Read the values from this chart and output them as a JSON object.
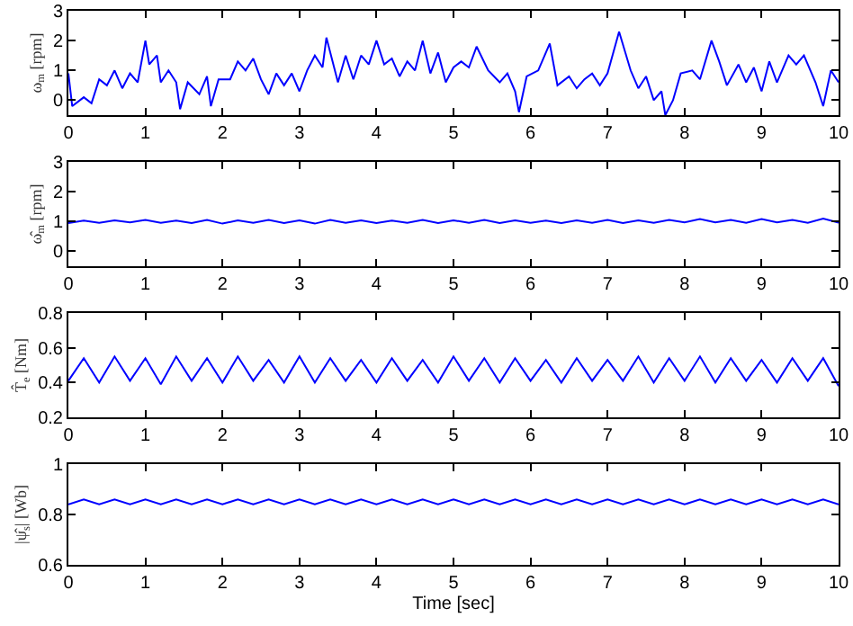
{
  "chart_data": [
    {
      "type": "line",
      "ylabel": "ω$_{m}$ [rpm]",
      "xlim": [
        0,
        10
      ],
      "xticks": [
        0,
        1,
        2,
        3,
        4,
        5,
        6,
        7,
        8,
        9,
        10
      ],
      "ylim": [
        -0.5,
        3
      ],
      "yticks": [
        0,
        1,
        2,
        3
      ],
      "x": [
        0,
        0.05,
        0.2,
        0.3,
        0.4,
        0.5,
        0.6,
        0.7,
        0.8,
        0.9,
        1.0,
        1.05,
        1.15,
        1.2,
        1.3,
        1.4,
        1.45,
        1.55,
        1.7,
        1.8,
        1.85,
        1.95,
        2.1,
        2.2,
        2.3,
        2.4,
        2.5,
        2.6,
        2.7,
        2.8,
        2.9,
        3.0,
        3.1,
        3.2,
        3.3,
        3.35,
        3.5,
        3.6,
        3.7,
        3.8,
        3.9,
        4.0,
        4.1,
        4.2,
        4.3,
        4.4,
        4.5,
        4.6,
        4.7,
        4.8,
        4.9,
        5.0,
        5.1,
        5.2,
        5.3,
        5.45,
        5.6,
        5.7,
        5.8,
        5.85,
        5.95,
        6.1,
        6.25,
        6.35,
        6.5,
        6.6,
        6.7,
        6.8,
        6.9,
        7.0,
        7.15,
        7.3,
        7.4,
        7.5,
        7.6,
        7.7,
        7.75,
        7.85,
        7.95,
        8.1,
        8.2,
        8.35,
        8.45,
        8.55,
        8.7,
        8.8,
        8.9,
        9.0,
        9.1,
        9.2,
        9.35,
        9.45,
        9.55,
        9.7,
        9.8,
        9.9,
        10
      ],
      "series": [
        {
          "color": "#0000ff",
          "values": [
            0.9,
            -0.2,
            0.1,
            -0.1,
            0.7,
            0.5,
            1.0,
            0.4,
            0.9,
            0.6,
            2.0,
            1.2,
            1.5,
            0.6,
            1.0,
            0.6,
            -0.3,
            0.6,
            0.2,
            0.8,
            -0.2,
            0.7,
            0.7,
            1.3,
            1.0,
            1.4,
            0.7,
            0.2,
            0.9,
            0.5,
            0.9,
            0.3,
            1.0,
            1.5,
            1.1,
            2.1,
            0.6,
            1.5,
            0.7,
            1.5,
            1.2,
            2.0,
            1.2,
            1.4,
            0.8,
            1.3,
            1.0,
            2.0,
            0.9,
            1.6,
            0.6,
            1.1,
            1.3,
            1.1,
            1.8,
            1.0,
            0.6,
            0.9,
            0.3,
            -0.4,
            0.8,
            1.0,
            1.9,
            0.5,
            0.8,
            0.4,
            0.7,
            0.9,
            0.5,
            0.9,
            2.3,
            1.0,
            0.4,
            0.8,
            0.0,
            0.3,
            -0.5,
            0.0,
            0.9,
            1.0,
            0.7,
            2.0,
            1.3,
            0.5,
            1.2,
            0.6,
            1.1,
            0.3,
            1.3,
            0.6,
            1.5,
            1.2,
            1.5,
            0.6,
            -0.2,
            1.0,
            0.6
          ]
        }
      ]
    },
    {
      "type": "line",
      "ylabel": "ω̂$_{m}$ [rpm]",
      "xlim": [
        0,
        10
      ],
      "xticks": [
        0,
        1,
        2,
        3,
        4,
        5,
        6,
        7,
        8,
        9,
        10
      ],
      "ylim": [
        -0.5,
        3
      ],
      "yticks": [
        0,
        1,
        2,
        3
      ],
      "x": [
        0,
        0.2,
        0.4,
        0.6,
        0.8,
        1,
        1.2,
        1.4,
        1.6,
        1.8,
        2,
        2.2,
        2.4,
        2.6,
        2.8,
        3,
        3.2,
        3.4,
        3.6,
        3.8,
        4,
        4.2,
        4.4,
        4.6,
        4.8,
        5,
        5.2,
        5.4,
        5.6,
        5.8,
        6,
        6.2,
        6.4,
        6.6,
        6.8,
        7,
        7.2,
        7.4,
        7.6,
        7.8,
        8,
        8.2,
        8.4,
        8.6,
        8.8,
        9,
        9.2,
        9.4,
        9.6,
        9.8,
        10
      ],
      "series": [
        {
          "color": "#0000ff",
          "values": [
            0.95,
            1.03,
            0.96,
            1.04,
            0.97,
            1.05,
            0.96,
            1.03,
            0.95,
            1.05,
            0.93,
            1.04,
            0.96,
            1.05,
            0.95,
            1.04,
            0.93,
            1.05,
            0.96,
            1.04,
            0.95,
            1.03,
            0.96,
            1.05,
            0.95,
            1.04,
            0.96,
            1.05,
            0.95,
            1.04,
            0.96,
            1.03,
            0.95,
            1.04,
            0.96,
            1.05,
            0.95,
            1.04,
            0.96,
            1.05,
            0.97,
            1.08,
            0.97,
            1.05,
            0.96,
            1.08,
            0.97,
            1.05,
            0.96,
            1.1,
            0.96
          ]
        }
      ]
    },
    {
      "type": "line",
      "ylabel": "T̂$_{e}$ [Nm]",
      "xlim": [
        0,
        10
      ],
      "xticks": [
        0,
        1,
        2,
        3,
        4,
        5,
        6,
        7,
        8,
        9,
        10
      ],
      "ylim": [
        0.2,
        0.8
      ],
      "yticks": [
        0.2,
        0.4,
        0.6,
        0.8
      ],
      "x": [
        0,
        0.2,
        0.4,
        0.6,
        0.8,
        1,
        1.2,
        1.4,
        1.6,
        1.8,
        2,
        2.2,
        2.4,
        2.6,
        2.8,
        3,
        3.2,
        3.4,
        3.6,
        3.8,
        4,
        4.2,
        4.4,
        4.6,
        4.8,
        5,
        5.2,
        5.4,
        5.6,
        5.8,
        6,
        6.2,
        6.4,
        6.6,
        6.8,
        7,
        7.2,
        7.4,
        7.6,
        7.8,
        8,
        8.2,
        8.4,
        8.6,
        8.8,
        9,
        9.2,
        9.4,
        9.6,
        9.8,
        10
      ],
      "series": [
        {
          "color": "#0000ff",
          "values": [
            0.41,
            0.54,
            0.4,
            0.55,
            0.41,
            0.54,
            0.39,
            0.55,
            0.41,
            0.54,
            0.4,
            0.55,
            0.41,
            0.53,
            0.4,
            0.55,
            0.4,
            0.54,
            0.41,
            0.53,
            0.4,
            0.54,
            0.41,
            0.53,
            0.4,
            0.55,
            0.41,
            0.54,
            0.4,
            0.54,
            0.41,
            0.53,
            0.4,
            0.54,
            0.41,
            0.53,
            0.41,
            0.55,
            0.4,
            0.54,
            0.41,
            0.55,
            0.4,
            0.54,
            0.41,
            0.53,
            0.4,
            0.54,
            0.41,
            0.54,
            0.38
          ]
        }
      ]
    },
    {
      "type": "line",
      "xlabel": "Time [sec]",
      "ylabel": "|ψ̂$_{s}$| [Wb]",
      "xlim": [
        0,
        10
      ],
      "xticks": [
        0,
        1,
        2,
        3,
        4,
        5,
        6,
        7,
        8,
        9,
        10
      ],
      "ylim": [
        0.6,
        1
      ],
      "yticks": [
        0.6,
        0.8,
        1
      ],
      "x": [
        0,
        0.2,
        0.4,
        0.6,
        0.8,
        1,
        1.2,
        1.4,
        1.6,
        1.8,
        2,
        2.2,
        2.4,
        2.6,
        2.8,
        3,
        3.2,
        3.4,
        3.6,
        3.8,
        4,
        4.2,
        4.4,
        4.6,
        4.8,
        5,
        5.2,
        5.4,
        5.6,
        5.8,
        6,
        6.2,
        6.4,
        6.6,
        6.8,
        7,
        7.2,
        7.4,
        7.6,
        7.8,
        8,
        8.2,
        8.4,
        8.6,
        8.8,
        9,
        9.2,
        9.4,
        9.6,
        9.8,
        10
      ],
      "series": [
        {
          "color": "#0000ff",
          "values": [
            0.84,
            0.86,
            0.84,
            0.86,
            0.84,
            0.86,
            0.84,
            0.86,
            0.84,
            0.86,
            0.84,
            0.86,
            0.84,
            0.86,
            0.84,
            0.86,
            0.84,
            0.86,
            0.84,
            0.86,
            0.84,
            0.86,
            0.84,
            0.86,
            0.84,
            0.86,
            0.84,
            0.86,
            0.84,
            0.86,
            0.84,
            0.86,
            0.84,
            0.86,
            0.84,
            0.86,
            0.84,
            0.86,
            0.84,
            0.86,
            0.84,
            0.86,
            0.84,
            0.86,
            0.84,
            0.86,
            0.84,
            0.86,
            0.84,
            0.86,
            0.84
          ]
        }
      ]
    }
  ]
}
